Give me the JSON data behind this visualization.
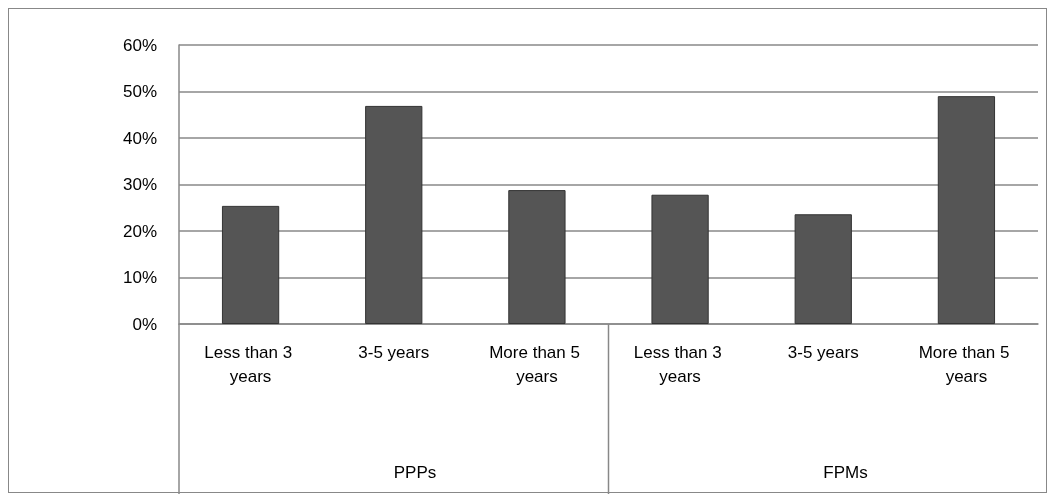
{
  "chart_data": {
    "type": "bar",
    "categories": [
      "Less than 3 years",
      "3-5 years",
      "More than 5 years",
      "Less than 3 years",
      "3-5 years",
      "More than 5 years"
    ],
    "values": [
      25.4,
      46.9,
      28.8,
      27.8,
      23.6,
      49.0
    ],
    "color": "#555555",
    "ylim": [
      0,
      60
    ],
    "yticks": [
      {
        "value": 0,
        "label": "0%"
      },
      {
        "value": 10,
        "label": "10%"
      },
      {
        "value": 20,
        "label": "20%"
      },
      {
        "value": 30,
        "label": "30%"
      },
      {
        "value": 40,
        "label": "40%"
      },
      {
        "value": 50,
        "label": "50%"
      },
      {
        "value": 60,
        "label": "60%"
      }
    ],
    "annotations": [
      "PPPs",
      "FPMs"
    ],
    "grid": true
  }
}
